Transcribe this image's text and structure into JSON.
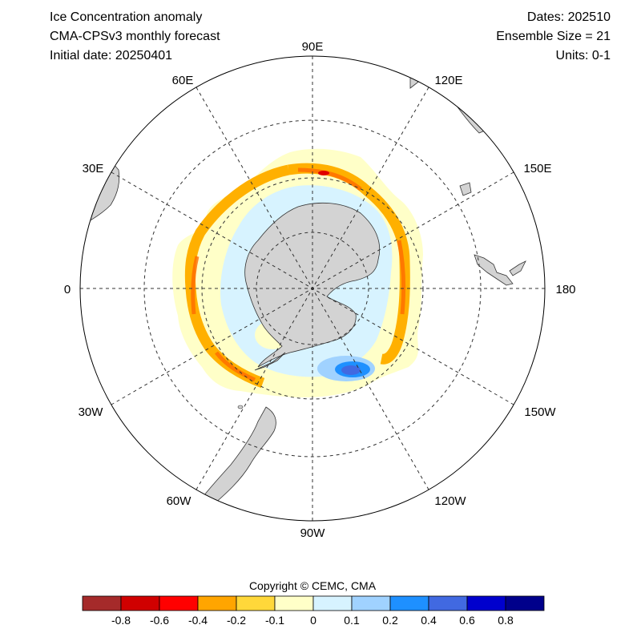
{
  "header": {
    "title_line1": "Ice Concentration anomaly",
    "title_line2": "CMA-CPSv3 monthly forecast",
    "title_line3": "Initial date: 20250401",
    "dates": "Dates: 202510",
    "ensemble": "Ensemble Size = 21",
    "units": "Units: 0-1"
  },
  "map": {
    "projection": "south-polar-stereographic",
    "grid": "on",
    "longitude_labels": {
      "90E": "90E",
      "120E": "120E",
      "150E": "150E",
      "180": "180",
      "150W": "150W",
      "120W": "120W",
      "90W": "90W",
      "60W": "60W",
      "30W": "30W",
      "0": "0",
      "30E": "30E",
      "60E": "60E"
    },
    "colors": {
      "land": "#d3d3d3",
      "coast": "#333333",
      "grid": "#333333"
    }
  },
  "colorbar": {
    "copyright": "Copyright © CEMC, CMA",
    "colors": [
      "#a52a2a",
      "#d00000",
      "#ff0000",
      "#ffa500",
      "#ffd83a",
      "#ffffc8",
      "#d7f3ff",
      "#a0d2ff",
      "#1e90ff",
      "#4169e1",
      "#0000cd",
      "#00008b"
    ],
    "tick_labels": [
      "-0.8",
      "-0.6",
      "-0.4",
      "-0.2",
      "-0.1",
      "0",
      "0.1",
      "0.2",
      "0.4",
      "0.6",
      "0.8"
    ]
  }
}
